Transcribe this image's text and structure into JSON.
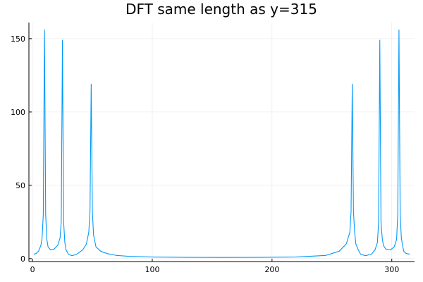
{
  "chart_data": {
    "type": "line",
    "title": "DFT same length as y=315",
    "xlabel": "",
    "ylabel": "",
    "xlim": [
      -3,
      319
    ],
    "ylim": [
      -2,
      161
    ],
    "grid": true,
    "legend": "none",
    "x_ticks": [
      0,
      100,
      200,
      300
    ],
    "x_tick_labels": [
      "0",
      "100",
      "200",
      "300"
    ],
    "y_ticks": [
      0,
      50,
      100,
      150
    ],
    "y_tick_labels": [
      "0",
      "50",
      "100",
      "150"
    ],
    "series": [
      {
        "color": "#009af9",
        "x": [
          1,
          3,
          5,
          7,
          8,
          9,
          10,
          11,
          12,
          13,
          15,
          18,
          21,
          23,
          24,
          25,
          26,
          27,
          28,
          30,
          33,
          37,
          42,
          45,
          47,
          48,
          49,
          50,
          51,
          53,
          57,
          62,
          70,
          80,
          100,
          130,
          158,
          190,
          220,
          245,
          256,
          262,
          265,
          266,
          267,
          268,
          269,
          270,
          272,
          274,
          278,
          283,
          286,
          288,
          289,
          290,
          291,
          292,
          293,
          295,
          299,
          302,
          304,
          305,
          306,
          307,
          308,
          309,
          310,
          312,
          315
        ],
        "y": [
          3,
          3.5,
          5,
          9,
          14,
          30,
          156,
          30,
          13,
          8,
          6,
          6.5,
          9,
          14,
          25,
          149,
          25,
          11,
          6,
          3,
          2,
          3,
          6,
          10,
          18,
          32,
          119,
          32,
          16,
          8,
          5,
          3.5,
          2.2,
          1.6,
          1.1,
          0.85,
          0.8,
          0.85,
          1.1,
          2.2,
          5,
          10,
          18,
          32,
          119,
          32,
          18,
          10,
          6,
          3,
          2,
          3,
          6,
          11,
          25,
          149,
          25,
          14,
          9,
          6.5,
          6,
          8,
          13,
          30,
          156,
          30,
          14,
          9,
          5,
          3.5,
          3
        ]
      }
    ]
  }
}
